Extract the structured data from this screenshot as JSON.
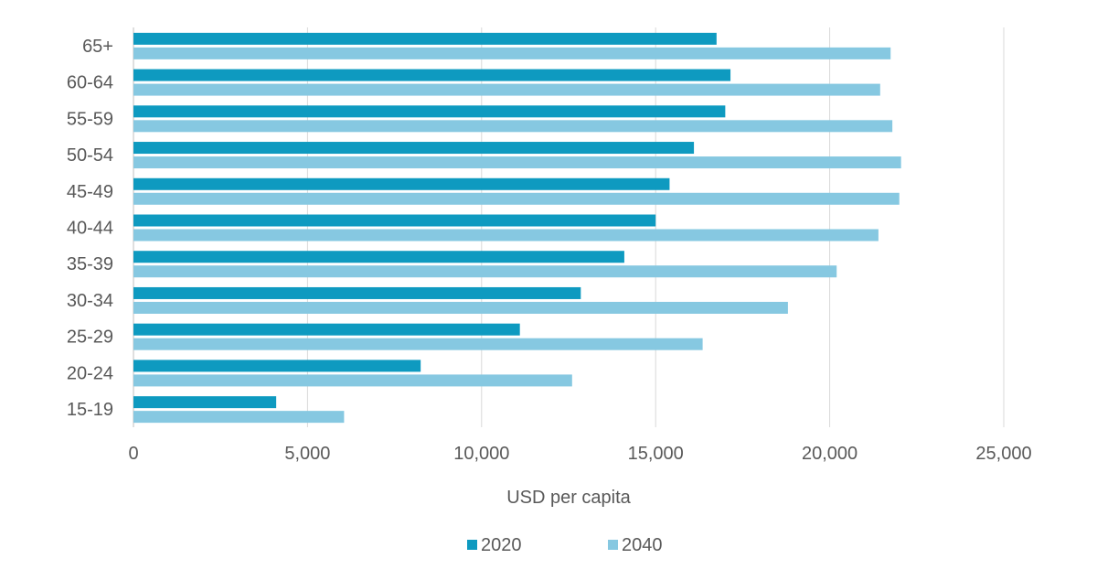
{
  "chart_data": {
    "type": "bar",
    "orientation": "horizontal",
    "categories": [
      "65+",
      "60-64",
      "55-59",
      "50-54",
      "45-49",
      "40-44",
      "35-39",
      "30-34",
      "25-29",
      "20-24",
      "15-19"
    ],
    "series": [
      {
        "name": "2020",
        "color": "#0e9ac0",
        "values": [
          16750,
          17150,
          17000,
          16100,
          15400,
          15000,
          14100,
          12850,
          11100,
          8250,
          4100
        ]
      },
      {
        "name": "2040",
        "color": "#86c8e1",
        "values": [
          21750,
          21450,
          21800,
          22050,
          22000,
          21400,
          20200,
          18800,
          16350,
          12600,
          6050
        ]
      }
    ],
    "xlabel": "USD per capita",
    "ylabel": "",
    "xlim": [
      0,
      25000
    ],
    "xticks": [
      0,
      5000,
      10000,
      15000,
      20000,
      25000
    ],
    "xtick_labels": [
      "0",
      "5,000",
      "10,000",
      "15,000",
      "20,000",
      "25,000"
    ],
    "grid": true,
    "legend_position": "bottom"
  }
}
